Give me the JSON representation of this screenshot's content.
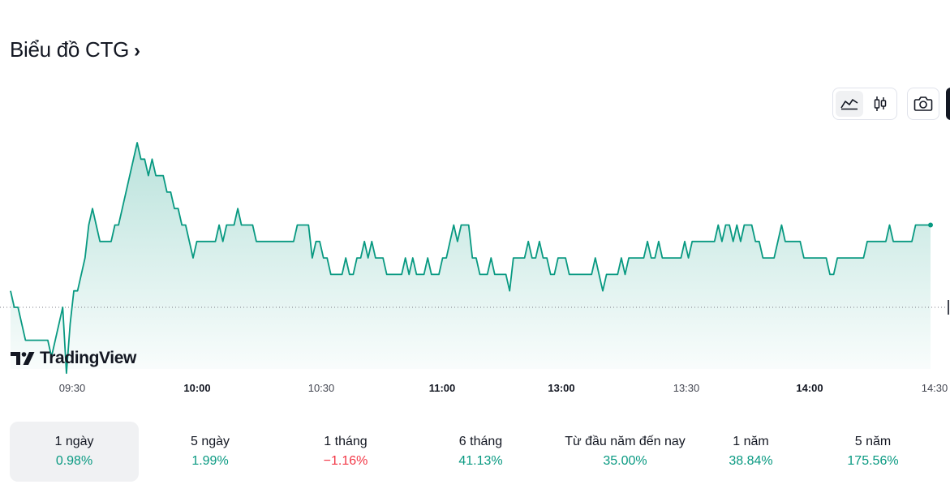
{
  "header": {
    "title": "Biểu đồ CTG",
    "chevron": "›"
  },
  "toolbar": {
    "buttons": [
      {
        "icon": "area-chart-icon",
        "active": true
      },
      {
        "icon": "candlestick-icon",
        "active": false
      },
      {
        "icon": "camera-icon",
        "active": false
      }
    ]
  },
  "logo": {
    "text": "TradingView"
  },
  "colors": {
    "line": "#089981",
    "up": "#089981",
    "down": "#f23645",
    "active_bg": "#f0f1f3"
  },
  "chart_data": {
    "type": "area",
    "x_labels": [
      {
        "label": "09:30",
        "bold": false
      },
      {
        "label": "10:00",
        "bold": true
      },
      {
        "label": "10:30",
        "bold": false
      },
      {
        "label": "11:00",
        "bold": true
      },
      {
        "label": "13:00",
        "bold": true
      },
      {
        "label": "13:30",
        "bold": false
      },
      {
        "label": "14:00",
        "bold": true
      },
      {
        "label": "14:30",
        "bold": false
      }
    ],
    "baseline_level": 0,
    "series_rel": [
      1,
      0,
      0,
      -1,
      -2,
      -2,
      -2,
      -2,
      -2,
      -2,
      -2,
      -3,
      -2,
      -1,
      0,
      -4,
      -1,
      1,
      1,
      2,
      3,
      5,
      6,
      5,
      4,
      4,
      4,
      4,
      5,
      5,
      6,
      7,
      8,
      9,
      10,
      9,
      9,
      8,
      9,
      8,
      8,
      8,
      7,
      7,
      6,
      6,
      5,
      5,
      4,
      3,
      4,
      4,
      4,
      4,
      4,
      4,
      5,
      4,
      5,
      5,
      5,
      6,
      5,
      5,
      5,
      5,
      4,
      4,
      4,
      4,
      4,
      4,
      4,
      4,
      4,
      4,
      4,
      5,
      5,
      5,
      5,
      3,
      4,
      4,
      3,
      3,
      2,
      2,
      2,
      2,
      3,
      2,
      2,
      3,
      3,
      4,
      3,
      4,
      3,
      3,
      3,
      2,
      2,
      2,
      2,
      2,
      3,
      2,
      3,
      2,
      2,
      2,
      3,
      2,
      2,
      2,
      3,
      3,
      4,
      5,
      4,
      5,
      5,
      5,
      3,
      3,
      2,
      2,
      2,
      3,
      2,
      2,
      2,
      2,
      1,
      3,
      3,
      3,
      3,
      4,
      3,
      3,
      4,
      3,
      3,
      2,
      2,
      3,
      3,
      3,
      2,
      2,
      2,
      2,
      2,
      2,
      2,
      3,
      2,
      1,
      2,
      2,
      2,
      2,
      3,
      2,
      3,
      3,
      3,
      3,
      3,
      4,
      3,
      3,
      4,
      3,
      3,
      3,
      3,
      3,
      3,
      4,
      3,
      4,
      4,
      4,
      4,
      4,
      4,
      4,
      5,
      4,
      5,
      5,
      4,
      5,
      4,
      5,
      5,
      5,
      4,
      4,
      3,
      3,
      3,
      3,
      4,
      5,
      4,
      4,
      4,
      4,
      4,
      3,
      3,
      3,
      3,
      3,
      3,
      3,
      2,
      2,
      3,
      3,
      3,
      3,
      3,
      3,
      3,
      3,
      4,
      4,
      4,
      4,
      4,
      4,
      5,
      4,
      4,
      4,
      4,
      4,
      4,
      5,
      5,
      5,
      5,
      5
    ],
    "last_point_marker": true
  },
  "periods": [
    {
      "label": "1 ngày",
      "value": "0.98%",
      "direction": "up",
      "active": true
    },
    {
      "label": "5 ngày",
      "value": "1.99%",
      "direction": "up",
      "active": false
    },
    {
      "label": "1 tháng",
      "value": "−1.16%",
      "direction": "down",
      "active": false
    },
    {
      "label": "6 tháng",
      "value": "41.13%",
      "direction": "up",
      "active": false
    },
    {
      "label": "Từ đầu năm đến nay",
      "value": "35.00%",
      "direction": "up",
      "active": false
    },
    {
      "label": "1 năm",
      "value": "38.84%",
      "direction": "up",
      "active": false
    },
    {
      "label": "5 năm",
      "value": "175.56%",
      "direction": "up",
      "active": false
    }
  ]
}
